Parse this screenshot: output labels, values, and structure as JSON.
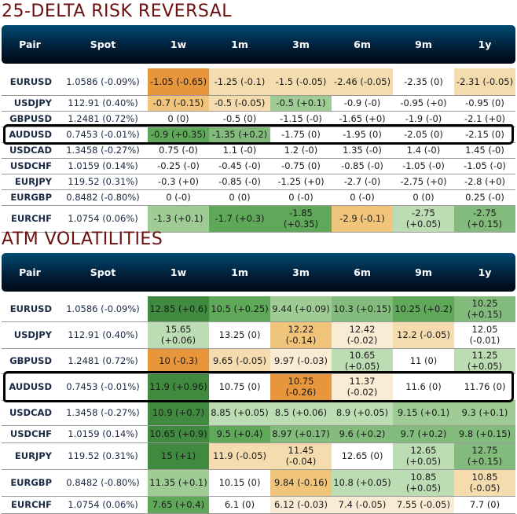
{
  "colors": {
    "title": "#6b0f0f",
    "header_bg_top": "#004a72",
    "header_bg_bottom": "#000814",
    "orange_strong": "#e8963c",
    "orange_mid": "#f0c47a",
    "orange_light": "#f5dcaf",
    "orange_faint": "#faebd4",
    "green_strong": "#3f8a3f",
    "green_mid": "#5fa85a",
    "green_soft": "#82bb7b",
    "green_light": "#9fcb95",
    "green_faint": "#bcdcb4",
    "neutral": "#ffffff"
  },
  "risk_reversal": {
    "title": "25-DELTA RISK REVERSAL",
    "columns": [
      "Pair",
      "Spot",
      "1w",
      "1m",
      "3m",
      "6m",
      "9m",
      "1y"
    ],
    "highlighted_pair": "AUDUSD",
    "rows": [
      {
        "pair": "EURUSD",
        "spot": "1.0586 (-0.09%)",
        "cells": [
          {
            "v": "-1.05 (-0.65)",
            "c": "orange_strong"
          },
          {
            "v": "-1.25 (-0.1)",
            "c": "orange_light"
          },
          {
            "v": "-1.5 (-0.05)",
            "c": "orange_light"
          },
          {
            "v": "-2.46 (-0.05)",
            "c": "orange_light"
          },
          {
            "v": "-2.35 (0)",
            "c": "neutral"
          },
          {
            "v": "-2.31 (-0.05)",
            "c": "orange_light"
          }
        ]
      },
      {
        "pair": "USDJPY",
        "spot": "112.91 (0.40%)",
        "cells": [
          {
            "v": "-0.7 (-0.15)",
            "c": "orange_mid"
          },
          {
            "v": "-0.5 (-0.05)",
            "c": "orange_light"
          },
          {
            "v": "-0.5 (+0.1)",
            "c": "green_light"
          },
          {
            "v": "-0.9 (-0)",
            "c": "neutral"
          },
          {
            "v": "-0.95 (+0)",
            "c": "neutral"
          },
          {
            "v": "-0.95 (0)",
            "c": "neutral"
          }
        ]
      },
      {
        "pair": "GBPUSD",
        "spot": "1.2481 (0.72%)",
        "cells": [
          {
            "v": "0 (0)",
            "c": "neutral"
          },
          {
            "v": "-0.5 (0)",
            "c": "neutral"
          },
          {
            "v": "-1.15 (-0)",
            "c": "neutral"
          },
          {
            "v": "-1.65 (+0)",
            "c": "neutral"
          },
          {
            "v": "-1.9 (-0)",
            "c": "neutral"
          },
          {
            "v": "-2.1 (+0)",
            "c": "neutral"
          }
        ]
      },
      {
        "pair": "AUDUSD",
        "spot": "0.7453 (-0.01%)",
        "cells": [
          {
            "v": "-0.9 (+0.35)",
            "c": "green_mid"
          },
          {
            "v": "-1.35 (+0.2)",
            "c": "green_soft"
          },
          {
            "v": "-1.75 (0)",
            "c": "neutral"
          },
          {
            "v": "-1.95 (0)",
            "c": "neutral"
          },
          {
            "v": "-2.05 (0)",
            "c": "neutral"
          },
          {
            "v": "-2.15 (0)",
            "c": "neutral"
          }
        ]
      },
      {
        "pair": "USDCAD",
        "spot": "1.3458 (-0.27%)",
        "cells": [
          {
            "v": "0.75 (-0)",
            "c": "neutral"
          },
          {
            "v": "1.1 (-0)",
            "c": "neutral"
          },
          {
            "v": "1.2 (-0)",
            "c": "neutral"
          },
          {
            "v": "1.35 (-0)",
            "c": "neutral"
          },
          {
            "v": "1.4 (-0)",
            "c": "neutral"
          },
          {
            "v": "1.45 (-0)",
            "c": "neutral"
          }
        ]
      },
      {
        "pair": "USDCHF",
        "spot": "1.0159 (0.14%)",
        "cells": [
          {
            "v": "-0.25 (-0)",
            "c": "neutral"
          },
          {
            "v": "-0.45 (-0)",
            "c": "neutral"
          },
          {
            "v": "-0.75 (0)",
            "c": "neutral"
          },
          {
            "v": "-0.85 (-0)",
            "c": "neutral"
          },
          {
            "v": "-1.05 (-0)",
            "c": "neutral"
          },
          {
            "v": "-1.05 (-0)",
            "c": "neutral"
          }
        ]
      },
      {
        "pair": "EURJPY",
        "spot": "119.52 (0.31%)",
        "cells": [
          {
            "v": "-0.3 (+0)",
            "c": "neutral"
          },
          {
            "v": "-0.85 (-0)",
            "c": "neutral"
          },
          {
            "v": "-1.25 (+0)",
            "c": "neutral"
          },
          {
            "v": "-2.7 (-0)",
            "c": "neutral"
          },
          {
            "v": "-2.75 (+0)",
            "c": "neutral"
          },
          {
            "v": "-2.8 (+0)",
            "c": "neutral"
          }
        ]
      },
      {
        "pair": "EURGBP",
        "spot": "0.8482 (-0.80%)",
        "cells": [
          {
            "v": "0 (-0)",
            "c": "neutral"
          },
          {
            "v": "0 (0)",
            "c": "neutral"
          },
          {
            "v": "0 (-0)",
            "c": "neutral"
          },
          {
            "v": "0 (-0)",
            "c": "neutral"
          },
          {
            "v": "0 (0)",
            "c": "neutral"
          },
          {
            "v": "0.25 (-0)",
            "c": "neutral"
          }
        ]
      },
      {
        "pair": "EURCHF",
        "spot": "1.0754 (0.06%)",
        "cells": [
          {
            "v": "-1.3 (+0.1)",
            "c": "green_light"
          },
          {
            "v": "-1.7 (+0.3)",
            "c": "green_mid"
          },
          {
            "v": "-1.85 (+0.35)",
            "c": "green_mid"
          },
          {
            "v": "-2.9 (-0.1)",
            "c": "orange_mid"
          },
          {
            "v": "-2.75 (+0.05)",
            "c": "green_faint"
          },
          {
            "v": "-2.75 (+0.15)",
            "c": "green_soft"
          }
        ]
      }
    ]
  },
  "atm_volatilities": {
    "title": "ATM VOLATILITIES",
    "columns": [
      "Pair",
      "Spot",
      "1w",
      "1m",
      "3m",
      "6m",
      "9m",
      "1y"
    ],
    "highlighted_pair": "AUDUSD",
    "rows": [
      {
        "pair": "EURUSD",
        "spot": "1.0586 (-0.09%)",
        "cells": [
          {
            "v": "12.85 (+0.6)",
            "c": "green_strong"
          },
          {
            "v": "10.5 (+0.25)",
            "c": "green_mid"
          },
          {
            "v": "9.44 (+0.09)",
            "c": "green_light"
          },
          {
            "v": "10.3 (+0.15)",
            "c": "green_soft"
          },
          {
            "v": "10.25 (+0.2)",
            "c": "green_mid"
          },
          {
            "v": "10.25 (+0.15)",
            "c": "green_soft"
          }
        ]
      },
      {
        "pair": "USDJPY",
        "spot": "112.91 (0.40%)",
        "cells": [
          {
            "v": "15.65 (+0.06)",
            "c": "green_faint"
          },
          {
            "v": "13.25 (0)",
            "c": "neutral"
          },
          {
            "v": "12.22 (-0.14)",
            "c": "orange_mid"
          },
          {
            "v": "12.42 (-0.02)",
            "c": "orange_faint"
          },
          {
            "v": "12.2 (-0.05)",
            "c": "orange_light"
          },
          {
            "v": "12.05 (-0.01)",
            "c": "neutral"
          }
        ]
      },
      {
        "pair": "GBPUSD",
        "spot": "1.2481 (0.72%)",
        "cells": [
          {
            "v": "10 (-0.3)",
            "c": "orange_strong"
          },
          {
            "v": "9.65 (-0.05)",
            "c": "orange_light"
          },
          {
            "v": "9.97 (-0.03)",
            "c": "orange_faint"
          },
          {
            "v": "10.65 (+0.05)",
            "c": "green_faint"
          },
          {
            "v": "11 (0)",
            "c": "neutral"
          },
          {
            "v": "11.25 (+0.05)",
            "c": "green_faint"
          }
        ]
      },
      {
        "pair": "AUDUSD",
        "spot": "0.7453 (-0.01%)",
        "cells": [
          {
            "v": "11.9 (+0.96)",
            "c": "green_strong"
          },
          {
            "v": "10.75 (0)",
            "c": "neutral"
          },
          {
            "v": "10.75 (-0.26)",
            "c": "orange_strong"
          },
          {
            "v": "11.37 (-0.02)",
            "c": "orange_faint"
          },
          {
            "v": "11.6 (0)",
            "c": "neutral"
          },
          {
            "v": "11.76 (0)",
            "c": "neutral"
          }
        ]
      },
      {
        "pair": "USDCAD",
        "spot": "1.3458 (-0.27%)",
        "cells": [
          {
            "v": "10.9 (+0.7)",
            "c": "green_strong"
          },
          {
            "v": "8.85 (+0.05)",
            "c": "green_faint"
          },
          {
            "v": "8.5 (+0.06)",
            "c": "green_faint"
          },
          {
            "v": "8.9 (+0.05)",
            "c": "green_faint"
          },
          {
            "v": "9.15 (+0.1)",
            "c": "green_light"
          },
          {
            "v": "9.3 (+0.1)",
            "c": "green_light"
          }
        ]
      },
      {
        "pair": "USDCHF",
        "spot": "1.0159 (0.14%)",
        "cells": [
          {
            "v": "10.65 (+0.9)",
            "c": "green_strong"
          },
          {
            "v": "9.5 (+0.4)",
            "c": "green_mid"
          },
          {
            "v": "8.97 (+0.17)",
            "c": "green_soft"
          },
          {
            "v": "9.6 (+0.2)",
            "c": "green_soft"
          },
          {
            "v": "9.7 (+0.2)",
            "c": "green_soft"
          },
          {
            "v": "9.8 (+0.15)",
            "c": "green_soft"
          }
        ]
      },
      {
        "pair": "EURJPY",
        "spot": "119.52 (0.31%)",
        "cells": [
          {
            "v": "15 (+1)",
            "c": "green_strong"
          },
          {
            "v": "11.9 (-0.05)",
            "c": "orange_light"
          },
          {
            "v": "11.45 (-0.04)",
            "c": "orange_light"
          },
          {
            "v": "12.65 (0)",
            "c": "neutral"
          },
          {
            "v": "12.65 (+0.05)",
            "c": "green_faint"
          },
          {
            "v": "12.75 (+0.15)",
            "c": "green_soft"
          }
        ]
      },
      {
        "pair": "EURGBP",
        "spot": "0.8482 (-0.80%)",
        "cells": [
          {
            "v": "11.35 (+0.1)",
            "c": "green_light"
          },
          {
            "v": "10.15 (0)",
            "c": "neutral"
          },
          {
            "v": "9.84 (-0.16)",
            "c": "orange_mid"
          },
          {
            "v": "10.8 (+0.05)",
            "c": "green_faint"
          },
          {
            "v": "10.85 (+0.05)",
            "c": "green_faint"
          },
          {
            "v": "10.85 (-0.05)",
            "c": "orange_light"
          }
        ]
      },
      {
        "pair": "EURCHF",
        "spot": "1.0754 (0.06%)",
        "cells": [
          {
            "v": "7.65 (+0.4)",
            "c": "green_mid"
          },
          {
            "v": "6.1 (0)",
            "c": "neutral"
          },
          {
            "v": "6.12 (-0.03)",
            "c": "orange_faint"
          },
          {
            "v": "7.4 (-0.05)",
            "c": "orange_faint"
          },
          {
            "v": "7.55 (-0.05)",
            "c": "orange_faint"
          },
          {
            "v": "7.7 (0)",
            "c": "neutral"
          }
        ]
      }
    ]
  }
}
